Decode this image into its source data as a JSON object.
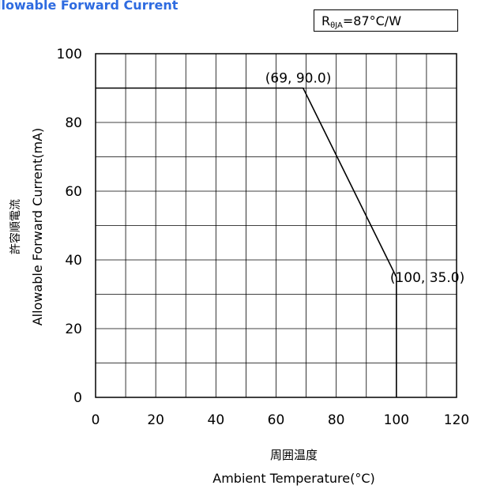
{
  "title": "llowable Forward Current",
  "resistance": {
    "prefix": "R",
    "subscript": "θJA",
    "value": "=87°C/W"
  },
  "chart_data": {
    "type": "line",
    "xlabel_jp": "周囲温度",
    "xlabel": "Ambient Temperature(°C)",
    "ylabel_jp": "許容順電流",
    "ylabel": "Allowable Forward Current(mA)",
    "xlim": [
      0,
      120
    ],
    "ylim": [
      0,
      100
    ],
    "x_ticks": [
      0,
      20,
      40,
      60,
      80,
      100,
      120
    ],
    "y_ticks": [
      0,
      20,
      40,
      60,
      80,
      100
    ],
    "grid": true,
    "series": [
      {
        "x": [
          0,
          69,
          100,
          100
        ],
        "y": [
          90,
          90,
          35,
          0
        ]
      }
    ],
    "annotations": [
      {
        "text": "(69, 90.0)",
        "x": 69,
        "y": 90
      },
      {
        "text": "(100, 35.0)",
        "x": 100,
        "y": 35
      }
    ]
  }
}
